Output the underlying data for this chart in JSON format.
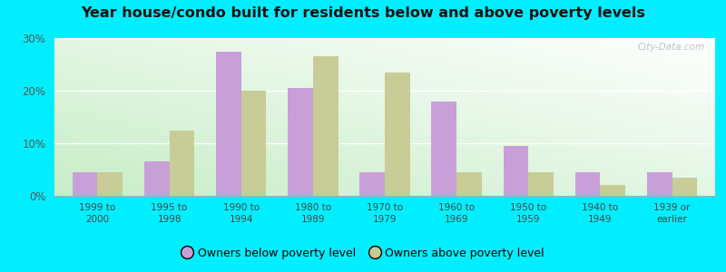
{
  "title": "Year house/condo built for residents below and above poverty levels",
  "categories": [
    "1999 to\n2000",
    "1995 to\n1998",
    "1990 to\n1994",
    "1980 to\n1989",
    "1970 to\n1979",
    "1960 to\n1969",
    "1950 to\n1959",
    "1940 to\n1949",
    "1939 or\nearlier"
  ],
  "below_poverty": [
    4.5,
    6.5,
    27.5,
    20.5,
    4.5,
    18.0,
    9.5,
    4.5,
    4.5
  ],
  "above_poverty": [
    4.5,
    12.5,
    20.0,
    26.5,
    23.5,
    4.5,
    4.5,
    2.0,
    3.5
  ],
  "below_color": "#c8a0d8",
  "above_color": "#c8cc96",
  "ylim": [
    0,
    30
  ],
  "yticks": [
    0,
    10,
    20,
    30
  ],
  "ytick_labels": [
    "0%",
    "10%",
    "20%",
    "30%"
  ],
  "outer_background": "#00eeff",
  "legend_below": "Owners below poverty level",
  "legend_above": "Owners above poverty level",
  "watermark": "City-Data.com",
  "grad_bottom_left": "#c8eec8",
  "grad_top_right": "#f0f8f0"
}
